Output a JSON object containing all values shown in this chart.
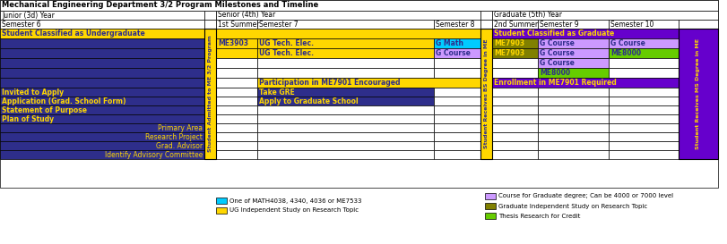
{
  "title": "Mechanical Engineering Department 3/2 Program Milestones and Timeline",
  "colors": {
    "yellow": "#FFD700",
    "blue_dark": "#2E2E8B",
    "purple": "#6600CC",
    "cyan": "#00CCFF",
    "lavender": "#CC99FF",
    "green": "#66CC00",
    "olive": "#808000",
    "white": "#FFFFFF",
    "black": "#000000"
  },
  "legend_items_left": [
    {
      "color": "#00CCFF",
      "text": "One of MATH4038, 4340, 4036 or ME7533"
    },
    {
      "color": "#FFD700",
      "text": "UG Independent Study on Research Topic"
    }
  ],
  "legend_items_right": [
    {
      "color": "#CC99FF",
      "text": "Course for Graduate degree; Can be 4000 or 7000 level"
    },
    {
      "color": "#808000",
      "text": "Graduate Independent Study on Research Topic"
    },
    {
      "color": "#66CC00",
      "text": "Thesis Research for Credit"
    }
  ]
}
